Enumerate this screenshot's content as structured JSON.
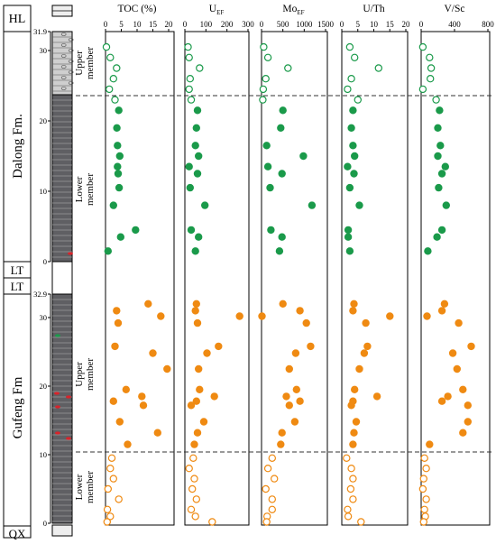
{
  "colors": {
    "green": "#1a9a4a",
    "orange": "#ef8a12",
    "dashed": "#333333",
    "column_dark": "#5f5f63",
    "column_light": "#cfcfcf"
  },
  "formations": {
    "hl": "HL",
    "dalong": "Dalong Fm.",
    "lt_upper": "LT",
    "lt_lower": "LT",
    "gufeng": "Gufeng Fm",
    "qx": "QX"
  },
  "members": {
    "dalong_upper": "Upper member",
    "dalong_lower": "Lower member",
    "gufeng_upper": "Upper member",
    "gufeng_lower": "Lower member"
  },
  "depth_ticks": {
    "dalong": [
      "31.9",
      "30",
      "20",
      "10",
      "0"
    ],
    "gufeng": [
      "32.9",
      "30",
      "20",
      "10",
      "0"
    ]
  },
  "chart_data": [
    {
      "type": "scatter",
      "title": "TOC (%)",
      "xlim": [
        0,
        20
      ],
      "xticks": [
        "0",
        "5",
        "10",
        "15",
        "20"
      ],
      "dalong": {
        "upper_depth": [
          30.5,
          29,
          27.5,
          26,
          24.5,
          23
        ],
        "upper_value": [
          0.3,
          1.5,
          3.5,
          2.5,
          1.2,
          3.0
        ],
        "lower_depth": [
          21.5,
          19,
          16.5,
          15,
          13.5,
          12.5,
          10.5,
          8,
          4.5,
          3.5,
          1.5
        ],
        "lower_value": [
          4.2,
          3.6,
          3.8,
          4.5,
          3.8,
          4.0,
          4.3,
          2.5,
          9.5,
          4.8,
          0.8
        ]
      },
      "gufeng": {
        "upper_depth": [
          32,
          31,
          30.2,
          29.2,
          25.8,
          24.8,
          22.5,
          19.5,
          18.5,
          17.8,
          17.2,
          14.8,
          13.2,
          11.5
        ],
        "upper_value": [
          13.5,
          3.5,
          17.5,
          4.0,
          3.0,
          15.0,
          19.5,
          6.5,
          11.5,
          2.5,
          12.0,
          4.5,
          16.5,
          7.0
        ],
        "lower_depth": [
          9.5,
          8,
          6.5,
          5,
          3.5,
          2,
          1,
          0.2
        ],
        "lower_value": [
          2.0,
          1.5,
          2.5,
          0.8,
          4.2,
          0.6,
          1.5,
          0.5
        ]
      }
    },
    {
      "type": "scatter",
      "title": "U",
      "title_sub": "EF",
      "xlim": [
        0,
        300
      ],
      "xticks": [
        "0",
        "100",
        "200",
        "300"
      ],
      "dalong": {
        "upper_depth": [
          30.5,
          29,
          27.5,
          26,
          24.5,
          23
        ],
        "upper_value": [
          15,
          20,
          70,
          25,
          20,
          30
        ],
        "lower_depth": [
          21.5,
          19,
          16.5,
          15,
          13.5,
          12.5,
          10.5,
          8,
          4.5,
          3.5,
          1.5
        ],
        "lower_value": [
          60,
          55,
          50,
          65,
          20,
          60,
          25,
          95,
          30,
          65,
          50
        ]
      },
      "gufeng": {
        "upper_depth": [
          32,
          31,
          30.2,
          29.2,
          25.8,
          24.8,
          22.5,
          19.5,
          18.5,
          17.8,
          17.2,
          14.8,
          13.2,
          11.5
        ],
        "upper_value": [
          55,
          50,
          260,
          60,
          160,
          105,
          65,
          70,
          140,
          55,
          30,
          90,
          60,
          45
        ],
        "lower_depth": [
          9.5,
          8,
          6.5,
          5,
          3.5,
          2,
          1,
          0.2
        ],
        "lower_value": [
          40,
          20,
          45,
          35,
          55,
          30,
          50,
          130
        ]
      }
    },
    {
      "type": "scatter",
      "title": "Mo",
      "title_sub": "EF",
      "xlim": [
        0,
        1500
      ],
      "xticks": [
        "0",
        "500",
        "1000",
        "1500"
      ],
      "dalong": {
        "upper_depth": [
          30.5,
          29,
          27.5,
          26,
          24.5,
          23
        ],
        "upper_value": [
          50,
          150,
          620,
          100,
          40,
          30
        ],
        "lower_depth": [
          21.5,
          19,
          16.5,
          15,
          13.5,
          12.5,
          10.5,
          8,
          4.5,
          3.5,
          1.5
        ],
        "lower_value": [
          500,
          450,
          120,
          980,
          150,
          480,
          200,
          1180,
          220,
          480,
          420
        ]
      },
      "gufeng": {
        "upper_depth": [
          32,
          31,
          30.2,
          29.2,
          25.8,
          24.8,
          22.5,
          19.5,
          18.5,
          17.8,
          17.2,
          14.8,
          13.2,
          11.5
        ],
        "upper_value": [
          500,
          900,
          10,
          1050,
          1150,
          800,
          650,
          820,
          580,
          900,
          650,
          780,
          480,
          450
        ],
        "lower_depth": [
          9.5,
          8,
          6.5,
          5,
          3.5,
          2,
          1,
          0.2
        ],
        "lower_value": [
          250,
          150,
          300,
          100,
          250,
          250,
          130,
          120
        ]
      }
    },
    {
      "type": "scatter",
      "title": "U/Th",
      "xlim": [
        0,
        20
      ],
      "xticks": [
        "0",
        "5",
        "10",
        "15",
        "20"
      ],
      "dalong": {
        "upper_depth": [
          30.5,
          29,
          27.5,
          26,
          24.5,
          23
        ],
        "upper_value": [
          2.5,
          4.0,
          11.5,
          3.0,
          1.8,
          5.0
        ],
        "lower_depth": [
          21.5,
          19,
          16.5,
          15,
          13.5,
          12.5,
          10.5,
          8,
          4.5,
          3.5,
          1.5
        ],
        "lower_value": [
          3.5,
          3.0,
          3.5,
          4.0,
          1.8,
          3.8,
          2.5,
          5.5,
          2.0,
          2.0,
          2.5
        ]
      },
      "gufeng": {
        "upper_depth": [
          32,
          31,
          30.2,
          29.2,
          25.8,
          24.8,
          22.5,
          19.5,
          18.5,
          17.8,
          17.2,
          14.8,
          13.2,
          11.5
        ],
        "upper_value": [
          3.8,
          3.5,
          15.0,
          7.5,
          8.0,
          7.0,
          5.5,
          4.0,
          11.0,
          3.5,
          3.0,
          4.5,
          3.8,
          3.5
        ],
        "lower_depth": [
          9.5,
          8,
          6.5,
          5,
          3.5,
          2,
          1,
          0.2
        ],
        "lower_value": [
          1.5,
          3.0,
          3.5,
          2.8,
          3.5,
          1.8,
          2.0,
          6.0
        ]
      }
    },
    {
      "type": "scatter",
      "title": "V/Sc",
      "xlim": [
        0,
        800
      ],
      "xticks": [
        "0",
        "400",
        "800"
      ],
      "dalong": {
        "upper_depth": [
          30.5,
          29,
          27.5,
          26,
          24.5,
          23
        ],
        "upper_value": [
          20,
          100,
          120,
          110,
          20,
          180
        ],
        "lower_depth": [
          21.5,
          19,
          16.5,
          15,
          13.5,
          12.5,
          10.5,
          8,
          4.5,
          3.5,
          1.5
        ],
        "lower_value": [
          220,
          200,
          230,
          200,
          290,
          250,
          210,
          300,
          250,
          190,
          80
        ]
      },
      "gufeng": {
        "upper_depth": [
          32,
          31,
          30.2,
          29.2,
          25.8,
          24.8,
          22.5,
          19.5,
          18.5,
          17.8,
          17.2,
          14.8,
          13.2,
          11.5
        ],
        "upper_value": [
          280,
          250,
          70,
          450,
          600,
          380,
          430,
          500,
          320,
          250,
          560,
          560,
          500,
          100
        ],
        "lower_depth": [
          9.5,
          8,
          6.5,
          5,
          3.5,
          2,
          1,
          0.2
        ],
        "lower_value": [
          40,
          60,
          30,
          20,
          60,
          40,
          50,
          30
        ]
      }
    }
  ]
}
